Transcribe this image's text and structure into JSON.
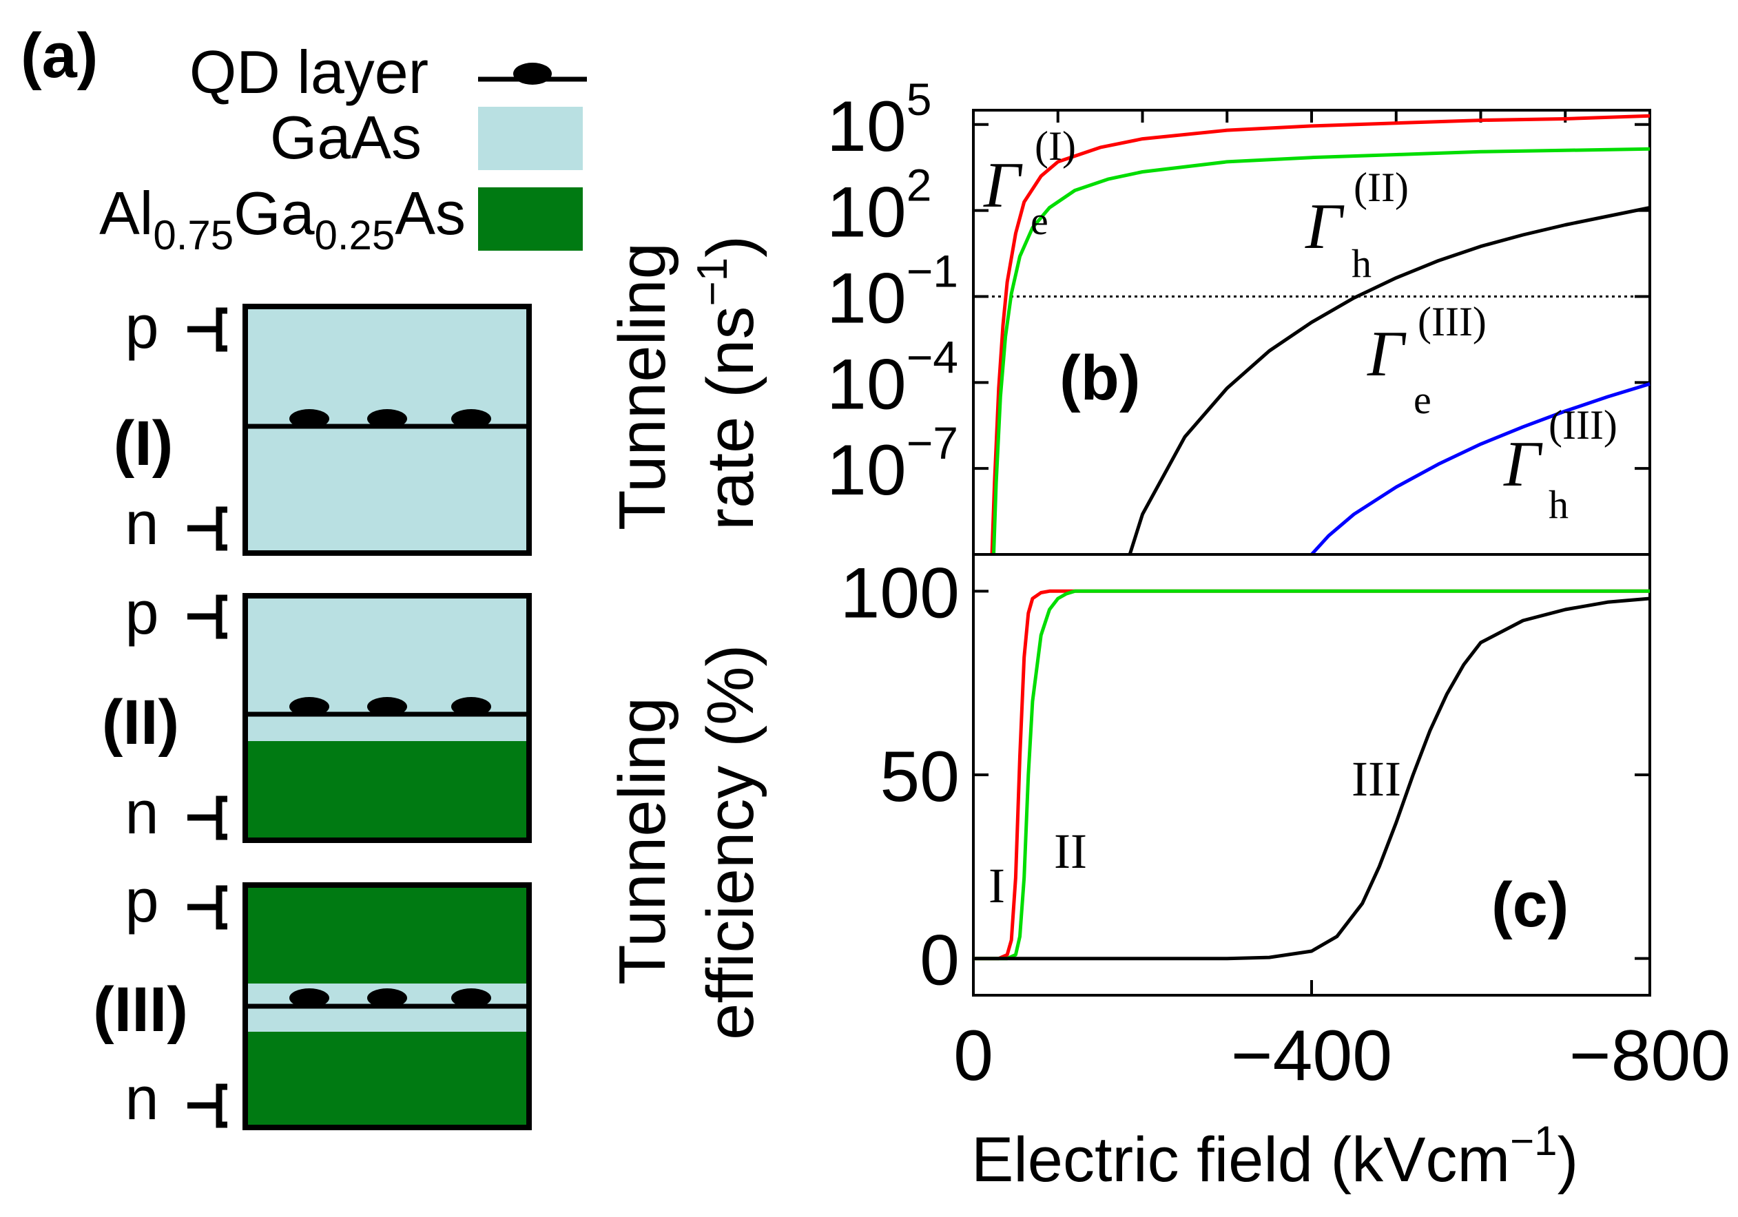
{
  "figure": {
    "panel_a": {
      "label": "(a)",
      "legend": {
        "qd_layer": "QD layer",
        "gaas": "GaAs",
        "algaas_al": "Al",
        "algaas_al_sub": "0.75",
        "algaas_ga": "Ga",
        "algaas_ga_sub": "0.25",
        "algaas_as": "As"
      },
      "structures": [
        {
          "label": "(I)",
          "p": "p",
          "n": "n"
        },
        {
          "label": "(II)",
          "p": "p",
          "n": "n"
        },
        {
          "label": "(III)",
          "p": "p",
          "n": "n"
        }
      ],
      "colors": {
        "gaas": "#b9e0e2",
        "algaas": "#007a12",
        "qd": "#000000"
      }
    },
    "panel_b_label": "(b)",
    "panel_c_label": "(c)",
    "ylabel_b": {
      "line1": "Tunneling",
      "line2": "rate (ns",
      "sup": "−1",
      "close": ")"
    },
    "ylabel_c": {
      "line1": "Tunneling",
      "line2": "efficiency (%)"
    },
    "xlabel": {
      "text": "Electric field (kVcm",
      "sup": "−1",
      "close": ")"
    }
  },
  "chart_data": [
    {
      "type": "line",
      "title": "(b)",
      "yscale": "log",
      "xlabel": "Electric field (kVcm−1)",
      "ylabel": "Tunneling rate (ns−1)",
      "xlim": [
        0,
        -800
      ],
      "ylim_log10": [
        -10,
        5.5
      ],
      "xticks": [
        "0",
        "−400",
        "−800"
      ],
      "yticks": [
        {
          "log": 5,
          "base": "10",
          "exp": "5"
        },
        {
          "log": 2,
          "base": "10",
          "exp": "2"
        },
        {
          "log": -1,
          "base": "10",
          "exp": "−1"
        },
        {
          "log": -4,
          "base": "10",
          "exp": "−4"
        },
        {
          "log": -7,
          "base": "10",
          "exp": "−7"
        }
      ],
      "reference_line_log10": -1,
      "series": [
        {
          "name": "Γe(I)",
          "sym": "Γ",
          "sub": "e",
          "sup": "(I)",
          "color": "#ff0000",
          "x": [
            -22,
            -25,
            -30,
            -35,
            -40,
            -50,
            -60,
            -80,
            -100,
            -150,
            -200,
            -300,
            -400,
            -500,
            -600,
            -700,
            -800
          ],
          "log10_y": [
            -10,
            -7.5,
            -4.2,
            -2.0,
            -0.5,
            1.2,
            2.3,
            3.2,
            3.7,
            4.2,
            4.5,
            4.8,
            4.95,
            5.05,
            5.15,
            5.2,
            5.3
          ]
        },
        {
          "name": "Γh(II)",
          "sym": "Γ",
          "sub": "h",
          "sup": "(II)",
          "color": "#00dd00",
          "x": [
            -24,
            -27,
            -32,
            -38,
            -45,
            -55,
            -70,
            -90,
            -120,
            -160,
            -200,
            -300,
            -400,
            -500,
            -600,
            -700,
            -800
          ],
          "log10_y": [
            -10,
            -7.5,
            -4.5,
            -2.4,
            -0.9,
            0.4,
            1.4,
            2.1,
            2.7,
            3.1,
            3.35,
            3.7,
            3.85,
            3.95,
            4.05,
            4.1,
            4.15
          ]
        },
        {
          "name": "Γe(III)",
          "sym": "Γ",
          "sub": "e",
          "sup": "(III)",
          "color": "#000000",
          "x": [
            -185,
            -200,
            -250,
            -300,
            -350,
            -400,
            -450,
            -500,
            -550,
            -600,
            -650,
            -700,
            -750,
            -800
          ],
          "log10_y": [
            -10,
            -8.6,
            -5.9,
            -4.2,
            -2.9,
            -1.9,
            -1.05,
            -0.35,
            0.25,
            0.75,
            1.15,
            1.5,
            1.8,
            2.1
          ]
        },
        {
          "name": "Γh(III)",
          "sym": "Γ",
          "sub": "h",
          "sup": "(III)",
          "color": "#0000ff",
          "x": [
            -400,
            -420,
            -450,
            -500,
            -550,
            -600,
            -650,
            -700,
            -750,
            -800
          ],
          "log10_y": [
            -10,
            -9.35,
            -8.6,
            -7.65,
            -6.85,
            -6.15,
            -5.55,
            -5.0,
            -4.5,
            -4.05
          ]
        }
      ]
    },
    {
      "type": "line",
      "title": "(c)",
      "xlabel": "Electric field (kVcm−1)",
      "ylabel": "Tunneling efficiency (%)",
      "xlim": [
        0,
        -800
      ],
      "ylim": [
        -10,
        110
      ],
      "yticks": [
        "0",
        "50",
        "100"
      ],
      "ytick_values": [
        0,
        50,
        100
      ],
      "series": [
        {
          "name": "I",
          "color": "#ff0000",
          "x": [
            0,
            -30,
            -40,
            -45,
            -50,
            -55,
            -60,
            -65,
            -70,
            -80,
            -90,
            -100,
            -200,
            -800
          ],
          "y": [
            0,
            0,
            1,
            5,
            22,
            55,
            82,
            94,
            98,
            99.6,
            100,
            100,
            100,
            100
          ]
        },
        {
          "name": "II",
          "color": "#00dd00",
          "x": [
            0,
            -40,
            -50,
            -55,
            -60,
            -65,
            -70,
            -80,
            -90,
            -100,
            -110,
            -120,
            -200,
            -800
          ],
          "y": [
            0,
            0,
            1,
            6,
            22,
            50,
            70,
            88,
            95,
            98,
            99.3,
            100,
            100,
            100
          ]
        },
        {
          "name": "III",
          "color": "#000000",
          "x": [
            0,
            -100,
            -200,
            -300,
            -350,
            -400,
            -430,
            -460,
            -480,
            -500,
            -520,
            -540,
            -560,
            -580,
            -600,
            -650,
            -700,
            -750,
            -800
          ],
          "y": [
            0,
            0,
            0,
            0,
            0.3,
            2,
            6,
            15,
            25,
            37,
            50,
            62,
            72,
            80,
            86,
            92,
            95,
            97,
            98
          ]
        }
      ]
    }
  ]
}
